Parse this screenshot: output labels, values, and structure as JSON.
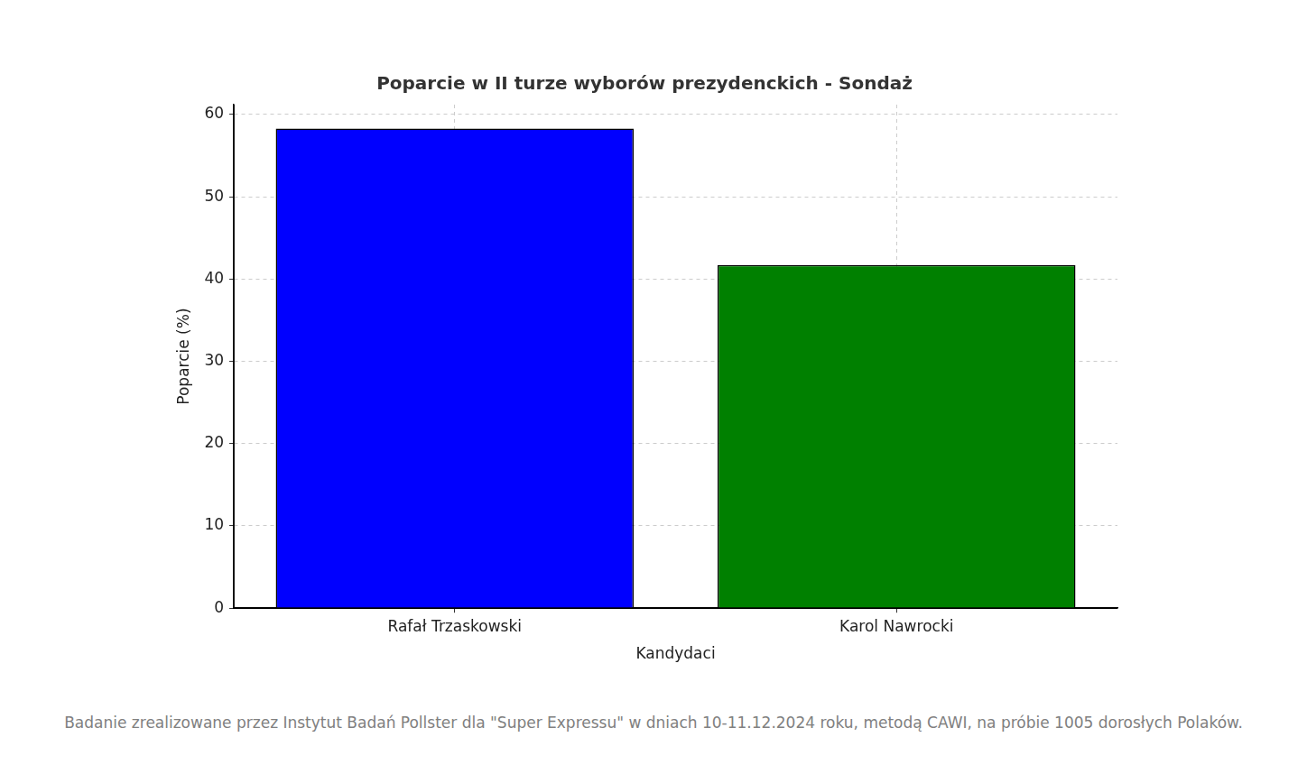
{
  "chart_data": {
    "type": "bar",
    "title": "Poparcie w II turze wyborów prezydenckich - Sondaż",
    "x_label": "Kandydaci",
    "y_label": "Poparcie (%)",
    "categories": [
      "Rafał Trzaskowski",
      "Karol Nawrocki"
    ],
    "values": [
      58.3,
      41.7
    ],
    "colors": [
      "#0000ff",
      "#008000"
    ],
    "ylim": [
      0,
      61.2
    ],
    "yticks": [
      0,
      10,
      20,
      30,
      40,
      50,
      60
    ],
    "grid": true,
    "footnote": "Badanie zrealizowane przez Instytut Badań Pollster dla \"Super Expressu\" w dniach 10-11.12.2024 roku, metodą CAWI, na próbie 1005 dorosłych Polaków."
  }
}
